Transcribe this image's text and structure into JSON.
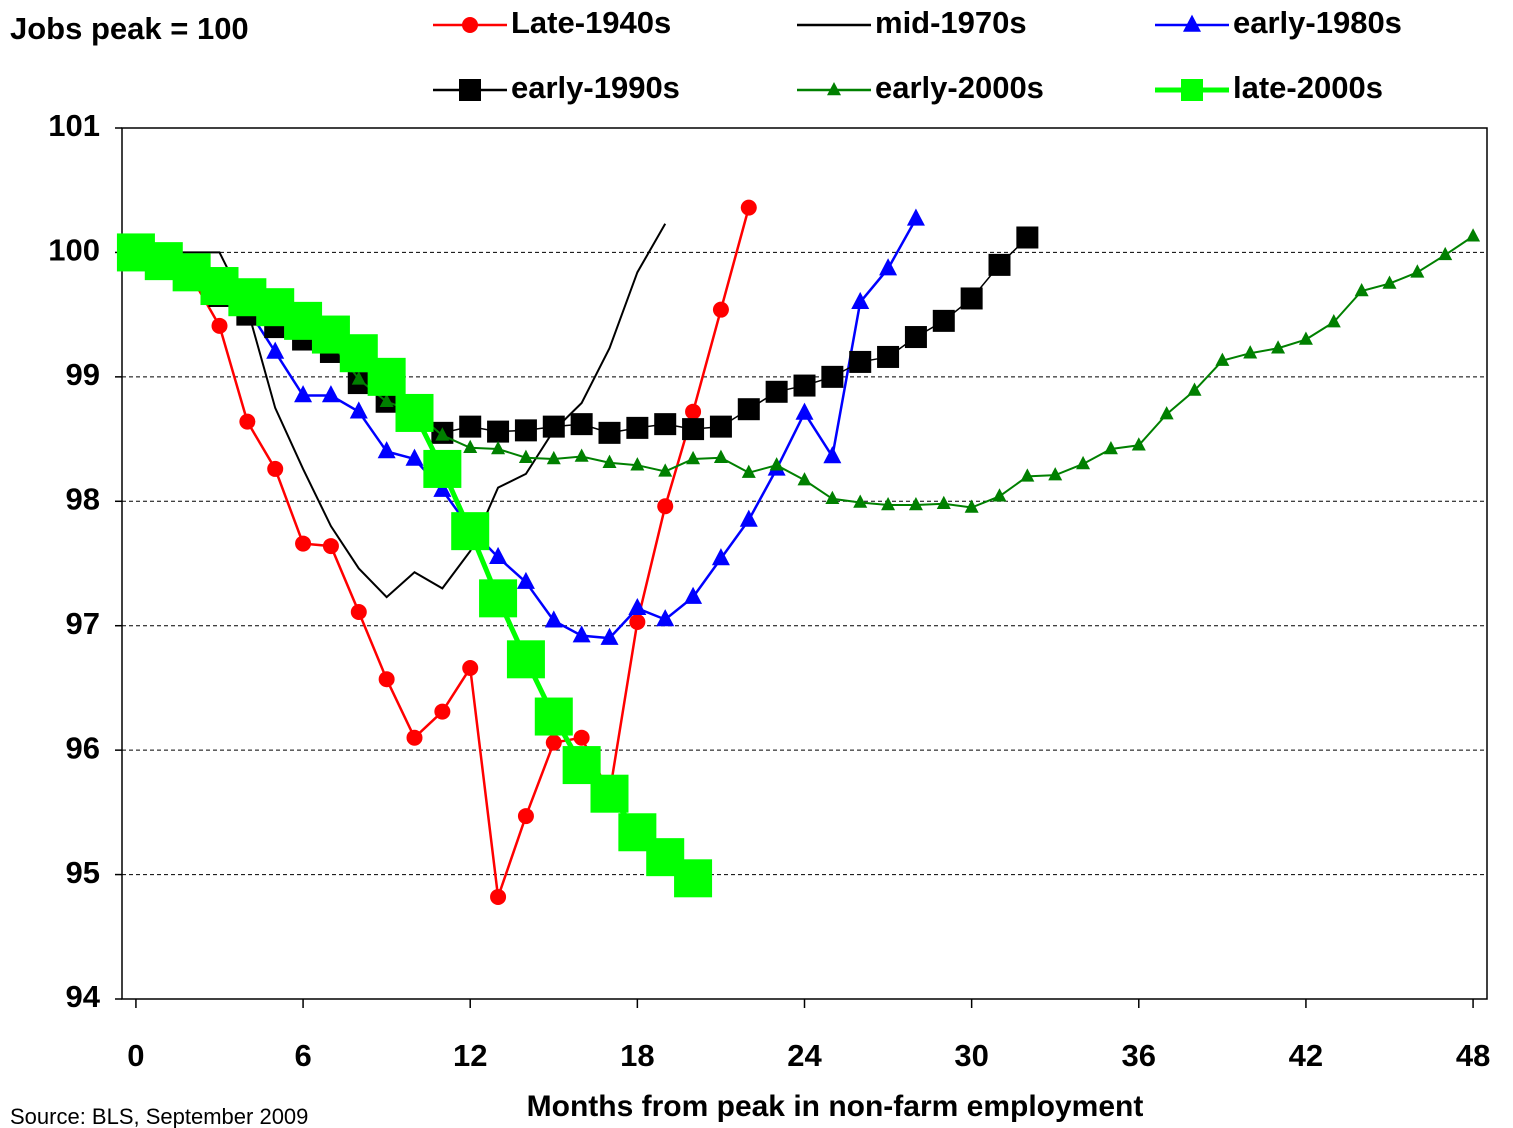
{
  "chart_data": {
    "type": "line",
    "y_label": "Jobs peak = 100",
    "x_label": "Months from peak in non-farm employment",
    "source": "Source: BLS, September 2009",
    "x": [
      0,
      1,
      2,
      3,
      4,
      5,
      6,
      7,
      8,
      9,
      10,
      11,
      12,
      13,
      14,
      15,
      16,
      17,
      18,
      19,
      20,
      21,
      22,
      23,
      24,
      25,
      26,
      27,
      28,
      29,
      30,
      31,
      32,
      33,
      34,
      35,
      36,
      37,
      38,
      39,
      40,
      41,
      42,
      43,
      44,
      45,
      46,
      47,
      48
    ],
    "xlim": [
      -0.5,
      48.5
    ],
    "xticks": [
      0,
      6,
      12,
      18,
      24,
      30,
      36,
      42,
      48
    ],
    "ylim": [
      94,
      101
    ],
    "yticks": [
      94,
      95,
      96,
      97,
      98,
      99,
      100,
      101
    ],
    "grid": true,
    "legend_position": "top",
    "series": [
      {
        "name": "Late-1940s",
        "color": "#ff0000",
        "marker": "circle",
        "values": [
          100,
          99.9,
          99.8,
          99.41,
          98.64,
          98.26,
          97.66,
          97.64,
          97.11,
          96.57,
          96.1,
          96.31,
          96.66,
          94.82,
          95.47,
          96.06,
          96.1,
          95.65,
          97.03,
          97.96,
          98.72,
          99.54,
          100.36,
          null,
          null,
          null,
          null,
          null,
          null,
          null,
          null,
          null,
          null,
          null,
          null,
          null,
          null,
          null,
          null,
          null,
          null,
          null,
          null,
          null,
          null,
          null,
          null,
          null,
          null
        ]
      },
      {
        "name": "mid-1970s",
        "color": "#000000",
        "marker": "none",
        "values": [
          100,
          100,
          100,
          100,
          99.55,
          98.75,
          98.26,
          97.8,
          97.46,
          97.23,
          97.43,
          97.3,
          97.6,
          98.11,
          98.22,
          98.57,
          98.79,
          99.23,
          99.84,
          100.23,
          null,
          null,
          null,
          null,
          null,
          null,
          null,
          null,
          null,
          null,
          null,
          null,
          null,
          null,
          null,
          null,
          null,
          null,
          null,
          null,
          null,
          null,
          null,
          null,
          null,
          null,
          null,
          null,
          null
        ]
      },
      {
        "name": "early-1980s",
        "color": "#0000ff",
        "marker": "triangle",
        "values": [
          100,
          99.95,
          99.85,
          99.75,
          99.55,
          99.2,
          98.85,
          98.85,
          98.72,
          98.4,
          98.34,
          98.09,
          97.78,
          97.55,
          97.35,
          97.04,
          96.92,
          96.9,
          97.14,
          97.05,
          97.23,
          97.54,
          97.85,
          98.26,
          98.71,
          98.36,
          99.6,
          99.87,
          100.27,
          null,
          null,
          null,
          null,
          null,
          null,
          null,
          null,
          null,
          null,
          null,
          null,
          null,
          null,
          null,
          null,
          null,
          null,
          null,
          null
        ]
      },
      {
        "name": "early-1990s",
        "color": "#000000",
        "marker": "square",
        "values": [
          100,
          99.9,
          99.8,
          99.65,
          99.5,
          99.4,
          99.3,
          99.2,
          98.95,
          98.8,
          98.7,
          98.55,
          98.6,
          98.56,
          98.57,
          98.6,
          98.62,
          98.55,
          98.59,
          98.62,
          98.58,
          98.6,
          98.74,
          98.88,
          98.93,
          99,
          99.12,
          99.16,
          99.32,
          99.45,
          99.63,
          99.9,
          100.12,
          null,
          null,
          null,
          null,
          null,
          null,
          null,
          null,
          null,
          null,
          null,
          null,
          null,
          null,
          null,
          null
        ]
      },
      {
        "name": "early-2000s",
        "color": "#008000",
        "marker": "triangle",
        "values": [
          100,
          99.95,
          99.85,
          99.75,
          99.62,
          99.5,
          99.4,
          99.28,
          98.98,
          98.8,
          98.72,
          98.53,
          98.43,
          98.42,
          98.35,
          98.34,
          98.36,
          98.31,
          98.29,
          98.24,
          98.34,
          98.35,
          98.23,
          98.29,
          98.17,
          98.02,
          97.99,
          97.97,
          97.97,
          97.98,
          97.95,
          98.04,
          98.2,
          98.21,
          98.3,
          98.42,
          98.45,
          98.7,
          98.89,
          99.13,
          99.19,
          99.23,
          99.3,
          99.44,
          99.69,
          99.75,
          99.84,
          99.98,
          100.13
        ]
      },
      {
        "name": "late-2000s",
        "color": "#00ff00",
        "marker": "square",
        "values": [
          100,
          99.93,
          99.84,
          99.73,
          99.64,
          99.56,
          99.45,
          99.34,
          99.19,
          99,
          98.71,
          98.26,
          97.76,
          97.22,
          96.73,
          96.27,
          95.88,
          95.65,
          95.34,
          95.14,
          94.97,
          null,
          null,
          null,
          null,
          null,
          null,
          null,
          null,
          null,
          null,
          null,
          null,
          null,
          null,
          null,
          null,
          null,
          null,
          null,
          null,
          null,
          null,
          null,
          null,
          null,
          null,
          null,
          null
        ]
      }
    ]
  }
}
